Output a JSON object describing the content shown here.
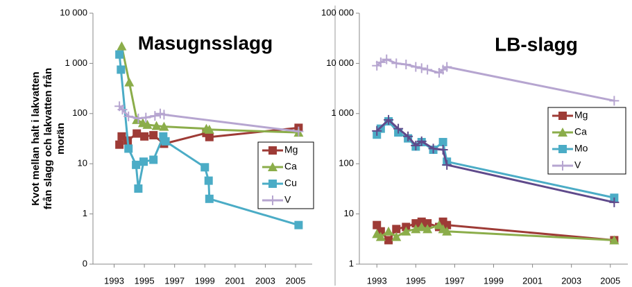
{
  "chart_data": [
    {
      "type": "line",
      "title": "Masugnsslagg",
      "log_y": true,
      "grid": false,
      "legend": "right",
      "ylabel": [
        "Kvot mellan halt i  lakvatten",
        "från slagg och lakvatten från",
        "morän"
      ],
      "xlim": [
        1991.6,
        2006.1
      ],
      "xticks": [
        1993,
        1995,
        1997,
        1999,
        2001,
        2003,
        2005
      ],
      "ylim": [
        0.1,
        10000
      ],
      "yticks": [
        {
          "value": 0.1,
          "label": "0"
        },
        1,
        10,
        100,
        {
          "value": 1000,
          "label": "1 000"
        },
        {
          "value": 10000,
          "label": "10 000"
        }
      ],
      "series": [
        {
          "name": "Mg",
          "color": "#9e3b36",
          "marker": "square",
          "x": [
            1993.35,
            1993.5,
            1993.9,
            1994.5,
            1995.0,
            1995.6,
            1996.3,
            1999.1,
            1999.3,
            2005.2
          ],
          "values": [
            24,
            35,
            29,
            40,
            35,
            37,
            25,
            41,
            34,
            52
          ]
        },
        {
          "name": "Ca",
          "color": "#8bad4a",
          "marker": "triangle",
          "x": [
            1993.5,
            1994.0,
            1994.5,
            1994.9,
            1995.2,
            1995.8,
            1996.3,
            1999.1,
            1999.3,
            2005.2
          ],
          "values": [
            2200,
            420,
            75,
            65,
            60,
            57,
            55,
            50,
            48,
            42
          ]
        },
        {
          "name": "Cu",
          "color": "#4bacc6",
          "marker": "square",
          "x": [
            1993.35,
            1993.45,
            1993.95,
            1994.45,
            1994.6,
            1994.95,
            1995.6,
            1996.25,
            1996.4,
            1999.0,
            1999.25,
            1999.3,
            2005.2
          ],
          "values": [
            1500,
            750,
            20,
            9.5,
            3.2,
            11,
            12,
            35,
            28,
            8.5,
            4.6,
            2.0,
            0.6
          ]
        },
        {
          "name": "V",
          "color": "#b6a5d0",
          "marker": "plus",
          "x": [
            1993.35,
            1993.55,
            1993.95,
            1994.6,
            1995.1,
            1995.7,
            1996.05,
            1996.3,
            2005.2
          ],
          "values": [
            140,
            120,
            88,
            80,
            83,
            90,
            100,
            95,
            44
          ]
        }
      ]
    },
    {
      "type": "line",
      "title": "LB-slagg",
      "log_y": true,
      "grid": false,
      "legend": "right",
      "xlim": [
        1992.1,
        2005.9
      ],
      "xticks": [
        1993,
        1995,
        1997,
        1999,
        2001,
        2003,
        2005
      ],
      "ylim": [
        1,
        100000
      ],
      "yticks": [
        1,
        10,
        100,
        {
          "value": 1000,
          "label": "1 000"
        },
        {
          "value": 10000,
          "label": "10 000"
        },
        {
          "value": 100000,
          "label": "100 000"
        }
      ],
      "series": [
        {
          "name": "Mg",
          "color": "#9e3b36",
          "marker": "square",
          "x": [
            1993.0,
            1993.2,
            1993.6,
            1994.0,
            1994.5,
            1995.0,
            1995.3,
            1995.6,
            1996.2,
            1996.4,
            1996.6,
            2005.2
          ],
          "values": [
            6,
            4.5,
            3,
            5,
            5.5,
            6.5,
            7,
            6.5,
            5.5,
            7,
            6,
            3
          ]
        },
        {
          "name": "Ca",
          "color": "#8bad4a",
          "marker": "triangle",
          "x": [
            1993.0,
            1993.2,
            1993.6,
            1994.0,
            1994.5,
            1995.0,
            1995.3,
            1995.6,
            1996.2,
            1996.4,
            1996.6,
            2005.2
          ],
          "values": [
            4,
            3.5,
            4.5,
            3.5,
            4.5,
            5,
            5.5,
            5,
            6,
            5,
            4.5,
            3
          ]
        },
        {
          "name": "Mo",
          "color": "#4bacc6",
          "marker": "square",
          "x": [
            1993.0,
            1993.2,
            1993.6,
            1994.1,
            1994.6,
            1995.0,
            1995.3,
            1995.9,
            1996.4,
            1996.6,
            2005.2
          ],
          "values": [
            380,
            500,
            700,
            420,
            320,
            220,
            270,
            190,
            270,
            110,
            21
          ]
        },
        {
          "name": "V",
          "color": "#b6a5d0",
          "marker": "plus",
          "x": [
            1993.0,
            1993.2,
            1993.5,
            1994.0,
            1994.5,
            1995.0,
            1995.3,
            1995.6,
            1996.2,
            1996.4,
            1996.6,
            2005.2
          ],
          "values": [
            9000,
            10500,
            12000,
            10000,
            9500,
            8500,
            8000,
            7500,
            6500,
            7500,
            8500,
            1800
          ]
        },
        {
          "name": null,
          "color": "#5f4a8b",
          "marker": "plus",
          "x": [
            1993.0,
            1993.6,
            1994.1,
            1994.6,
            1995.0,
            1995.3,
            1995.9,
            1996.4,
            1996.6,
            2005.2
          ],
          "values": [
            450,
            750,
            500,
            350,
            230,
            280,
            200,
            190,
            95,
            17
          ]
        }
      ]
    }
  ]
}
